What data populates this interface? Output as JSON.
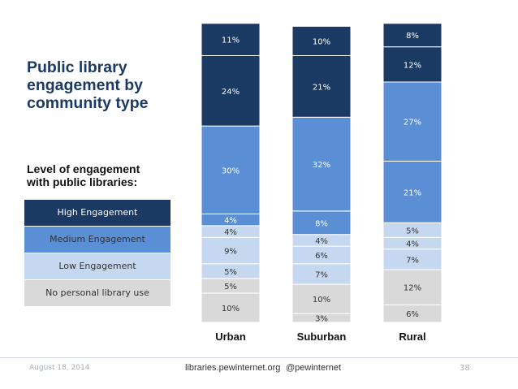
{
  "colors": {
    "high": "#1b3a63",
    "medium": "#5a8fd6",
    "low": "#c6d8f0",
    "none": "#d9d9d9",
    "text_dark_bg": "#ffffff",
    "text_light_bg": "#333333"
  },
  "chart_data": {
    "type": "bar",
    "stacked": true,
    "title": "Public library\nengagement by\ncommunity type",
    "legend_title": "Level of engagement\nwith public libraries:",
    "legend_placement": "left",
    "categories": [
      "Urban",
      "Suburban",
      "Rural"
    ],
    "series": [
      {
        "name": "No personal library use",
        "color_key": "none",
        "segments": [
          {
            "label": "10%",
            "values": [
              10,
              3,
              6
            ]
          },
          {
            "label": "",
            "values": [
              null,
              null,
              null
            ]
          }
        ]
      }
    ],
    "columns": [
      {
        "name": "Urban",
        "segments": [
          {
            "group": "none",
            "value": 10
          },
          {
            "group": "none",
            "value": 5
          },
          {
            "group": "low",
            "value": 5
          },
          {
            "group": "low",
            "value": 9
          },
          {
            "group": "low",
            "value": 4
          },
          {
            "group": "medium",
            "value": 4
          },
          {
            "group": "medium",
            "value": 30
          },
          {
            "group": "high",
            "value": 24
          },
          {
            "group": "high",
            "value": 11
          }
        ]
      },
      {
        "name": "Suburban",
        "segments": [
          {
            "group": "none",
            "value": 3
          },
          {
            "group": "none",
            "value": 10
          },
          {
            "group": "low",
            "value": 7
          },
          {
            "group": "low",
            "value": 6
          },
          {
            "group": "low",
            "value": 4
          },
          {
            "group": "medium",
            "value": 8
          },
          {
            "group": "medium",
            "value": 32
          },
          {
            "group": "high",
            "value": 21
          },
          {
            "group": "high",
            "value": 10
          }
        ]
      },
      {
        "name": "Rural",
        "segments": [
          {
            "group": "none",
            "value": 6
          },
          {
            "group": "none",
            "value": 12
          },
          {
            "group": "low",
            "value": 7
          },
          {
            "group": "low",
            "value": 4
          },
          {
            "group": "low",
            "value": 5
          },
          {
            "group": "medium",
            "value": 21
          },
          {
            "group": "medium",
            "value": 27
          },
          {
            "group": "high",
            "value": 12
          },
          {
            "group": "high",
            "value": 8
          }
        ]
      }
    ],
    "legend": [
      {
        "group": "high",
        "label": "High Engagement"
      },
      {
        "group": "medium",
        "label": "Medium Engagement"
      },
      {
        "group": "low",
        "label": "Low Engagement"
      },
      {
        "group": "none",
        "label": "No personal library use"
      }
    ],
    "ylim": [
      0,
      100
    ]
  },
  "footer": {
    "date": "August 18, 2014",
    "site": "libraries.pewinternet.org",
    "handle": "@pewinternet",
    "page": "38"
  }
}
